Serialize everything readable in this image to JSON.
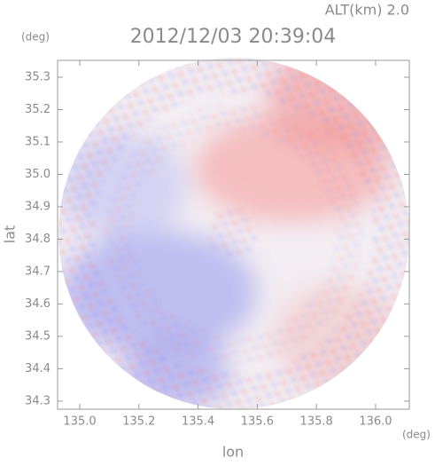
{
  "chart_data": {
    "type": "map",
    "title": "2012/12/03 20:39:04",
    "subtitle": "ALT(km) 2.0",
    "x_label": "lon",
    "y_label": "lat",
    "x_unit": "(deg)",
    "y_unit": "(deg)",
    "xlim": [
      134.925,
      136.114
    ],
    "ylim": [
      34.275,
      35.352
    ],
    "xticks": [
      {
        "value": 135,
        "label": "135.0"
      },
      {
        "value": 135.2,
        "label": "135.2"
      },
      {
        "value": 135.4,
        "label": "135.4"
      },
      {
        "value": 135.6,
        "label": "135.6"
      },
      {
        "value": 135.8,
        "label": "135.8"
      },
      {
        "value": 136,
        "label": "136.0"
      }
    ],
    "yticks": [
      34.3,
      34.4,
      34.5,
      34.6,
      34.7,
      34.8,
      34.9,
      {
        "value": 35,
        "label": "35.0"
      },
      35.1,
      35.2,
      35.3
    ]
  }
}
